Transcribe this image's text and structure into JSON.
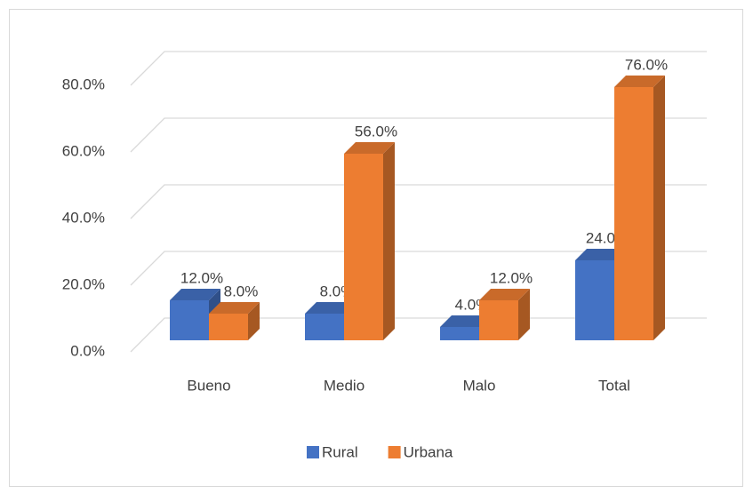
{
  "chart_data": {
    "type": "bar3d",
    "categories": [
      "Bueno",
      "Medio",
      "Malo",
      "Total"
    ],
    "series": [
      {
        "name": "Rural",
        "color": "#4472c4",
        "values": [
          12,
          8,
          4,
          24
        ],
        "value_labels": [
          "12.0%",
          "8.0%",
          "4.0%",
          "24.0%"
        ]
      },
      {
        "name": "Urbana",
        "color": "#ed7d31",
        "values": [
          8,
          56,
          12,
          76
        ],
        "value_labels": [
          "8.0%",
          "56.0%",
          "12.0%",
          "76.0%"
        ]
      }
    ],
    "ylim": [
      0,
      80
    ],
    "yticks": [
      {
        "value": 0,
        "label": "0.0%"
      },
      {
        "value": 20,
        "label": "20.0%"
      },
      {
        "value": 40,
        "label": "40.0%"
      },
      {
        "value": 60,
        "label": "60.0%"
      },
      {
        "value": 80,
        "label": "80.0%"
      }
    ],
    "grid": true,
    "legend": "bottom"
  }
}
